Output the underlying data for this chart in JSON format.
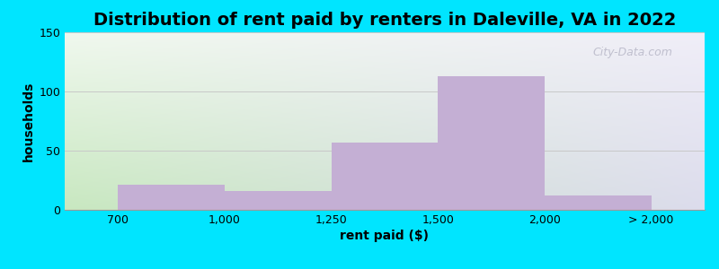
{
  "title": "Distribution of rent paid by renters in Daleville, VA in 2022",
  "xlabel": "rent paid ($)",
  "ylabel": "households",
  "tick_labels": [
    "700",
    "1,000",
    "1,250",
    "1,500",
    "2,000",
    "> 2,000"
  ],
  "bar_values": [
    21,
    16,
    57,
    113,
    12
  ],
  "bar_color": "#c4afd4",
  "ylim": [
    0,
    150
  ],
  "yticks": [
    0,
    50,
    100,
    150
  ],
  "background_outer": "#00e5ff",
  "grad_left_color": "#d0ecc8",
  "grad_right_color": "#e8e8f2",
  "grad_top_color": "#f0f8f0",
  "grid_color": "#c8c8c8",
  "title_fontsize": 14,
  "axis_label_fontsize": 10,
  "tick_fontsize": 9,
  "watermark_text": "City-Data.com",
  "tick_positions": [
    0,
    1,
    2,
    3,
    4,
    5
  ]
}
